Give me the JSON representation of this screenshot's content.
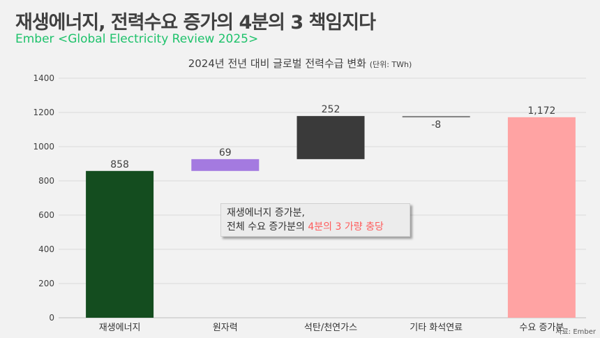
{
  "header": {
    "title": "재생에너지, 전력수요 증가의 4분의 3 책임지다",
    "source": "Ember <Global Electricity Review 2025>"
  },
  "chart_data": {
    "type": "waterfall",
    "title": "2024년 전년 대비 글로벌 전력수급 변화",
    "unit_note": "(단위: TWh)",
    "categories": [
      "재생에너지",
      "원자력",
      "석탄/천연가스",
      "기타 화석연료",
      "수요 증가분"
    ],
    "values": [
      858,
      69,
      252,
      -8,
      1172
    ],
    "labels": [
      "858",
      "69",
      "252",
      "-8",
      "1,172"
    ],
    "is_total": [
      false,
      false,
      false,
      false,
      true
    ],
    "ylim": [
      0,
      1400
    ],
    "yticks": [
      0,
      200,
      400,
      600,
      800,
      1000,
      1200,
      1400
    ],
    "grid": true,
    "colors": [
      "#144d1f",
      "#a47ae0",
      "#3a3a3a",
      "#7f7f7f",
      "#ffa3a3"
    ]
  },
  "callout": {
    "line1": "재생에너지 증가분,",
    "line2_prefix": "전체 수요 증가분의 ",
    "line2_highlight": "4분의 3 가량 충당"
  },
  "footer": {
    "credit": "자료: Ember"
  }
}
